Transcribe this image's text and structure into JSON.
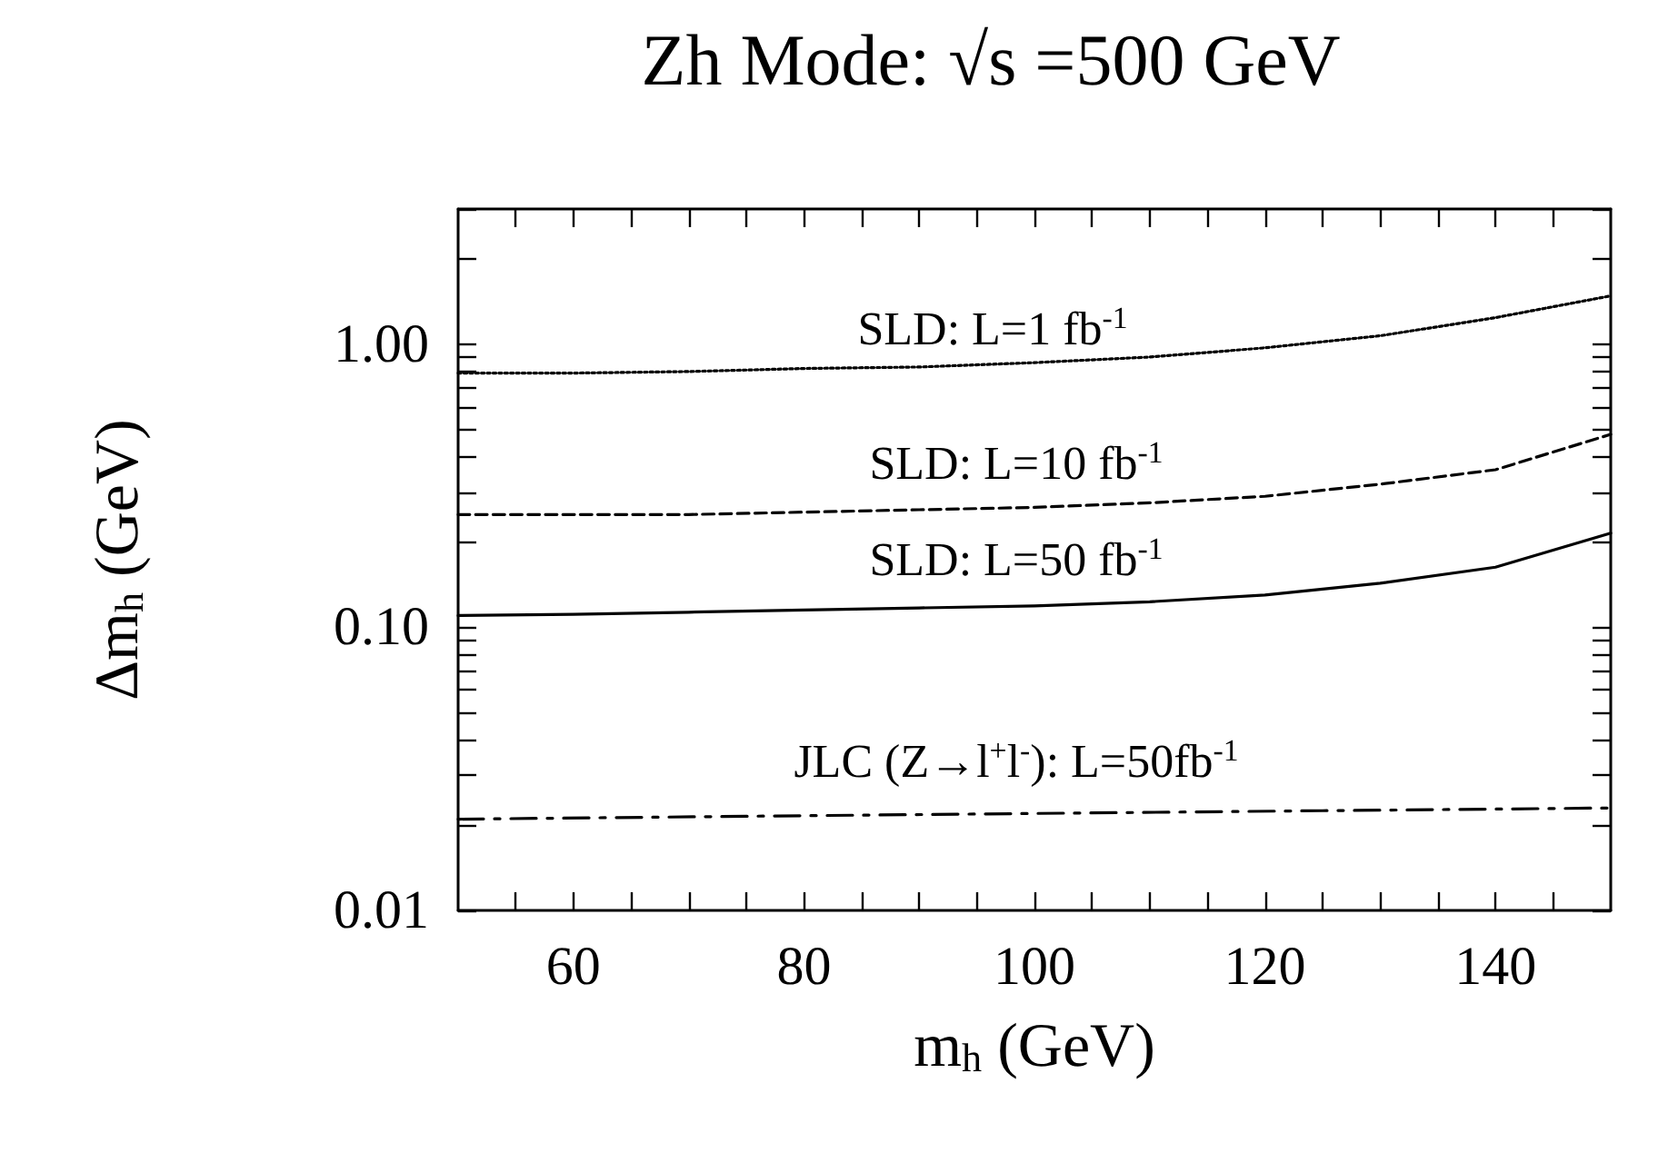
{
  "chart_data": {
    "type": "line",
    "title": "Zh Mode: √s =500 GeV",
    "xlabel": "m$_{h}$ (GeV)",
    "ylabel": "Δm$_{h}$ (GeV)",
    "log": "y",
    "marker": "none",
    "xlim": [
      50,
      150
    ],
    "xticks": [
      {
        "value": 55,
        "label": null
      },
      60,
      {
        "value": 65,
        "label": null
      },
      {
        "value": 70,
        "label": null
      },
      {
        "value": 75,
        "label": null
      },
      80,
      {
        "value": 85,
        "label": null
      },
      {
        "value": 90,
        "label": null
      },
      {
        "value": 95,
        "label": null
      },
      100,
      {
        "value": 105,
        "label": null
      },
      {
        "value": 110,
        "label": null
      },
      {
        "value": 115,
        "label": null
      },
      120,
      {
        "value": 125,
        "label": null
      },
      {
        "value": 130,
        "label": null
      },
      {
        "value": 135,
        "label": null
      },
      140,
      {
        "value": 145,
        "label": null
      }
    ],
    "ylim": [
      0.01,
      3
    ],
    "yticks": [
      {
        "value": 0.01,
        "label": "0.01"
      },
      {
        "value": 0.02,
        "label": null
      },
      {
        "value": 0.03,
        "label": null
      },
      {
        "value": 0.04,
        "label": null
      },
      {
        "value": 0.05,
        "label": null
      },
      {
        "value": 0.06,
        "label": null
      },
      {
        "value": 0.07,
        "label": null
      },
      {
        "value": 0.08,
        "label": null
      },
      {
        "value": 0.09,
        "label": null
      },
      {
        "value": 0.1,
        "label": "0.10"
      },
      {
        "value": 0.2,
        "label": null
      },
      {
        "value": 0.3,
        "label": null
      },
      {
        "value": 0.4,
        "label": null
      },
      {
        "value": 0.5,
        "label": null
      },
      {
        "value": 0.6,
        "label": null
      },
      {
        "value": 0.7,
        "label": null
      },
      {
        "value": 0.8,
        "label": null
      },
      {
        "value": 0.9,
        "label": null
      },
      {
        "value": 1,
        "label": "1.00"
      },
      {
        "value": 2,
        "label": null
      },
      {
        "value": 3,
        "label": null
      }
    ],
    "series": [
      {
        "color": "#000000",
        "line_style": "dotted",
        "x": [
          50,
          60,
          70,
          80,
          90,
          100,
          110,
          120,
          130,
          140,
          150
        ],
        "values": [
          0.79,
          0.79,
          0.8,
          0.82,
          0.83,
          0.86,
          0.9,
          0.97,
          1.07,
          1.24,
          1.48
        ]
      },
      {
        "color": "#000000",
        "line_style": "dashed",
        "x": [
          50,
          60,
          70,
          80,
          90,
          100,
          110,
          120,
          130,
          140,
          150
        ],
        "values": [
          0.25,
          0.25,
          0.25,
          0.255,
          0.26,
          0.265,
          0.275,
          0.29,
          0.32,
          0.36,
          0.48
        ]
      },
      {
        "color": "#000000",
        "line_style": "solid",
        "x": [
          50,
          60,
          70,
          80,
          90,
          100,
          110,
          120,
          130,
          140,
          150
        ],
        "values": [
          0.11,
          0.111,
          0.113,
          0.115,
          0.117,
          0.119,
          0.123,
          0.13,
          0.143,
          0.163,
          0.215
        ]
      },
      {
        "color": "#000000",
        "line_style": "dashdot",
        "x": [
          50,
          75,
          100,
          125,
          150
        ],
        "values": [
          0.021,
          0.0215,
          0.022,
          0.0225,
          0.023
        ]
      }
    ],
    "annotations": [
      "SLD: L=1 fb$^{-1}$",
      "SLD: L=10 fb$^{-1}$",
      "SLD: L=50 fb$^{-1}$",
      "JLC (Z→l$^{+}$l$^{-}$): L=50fb$^{-1}$"
    ]
  }
}
